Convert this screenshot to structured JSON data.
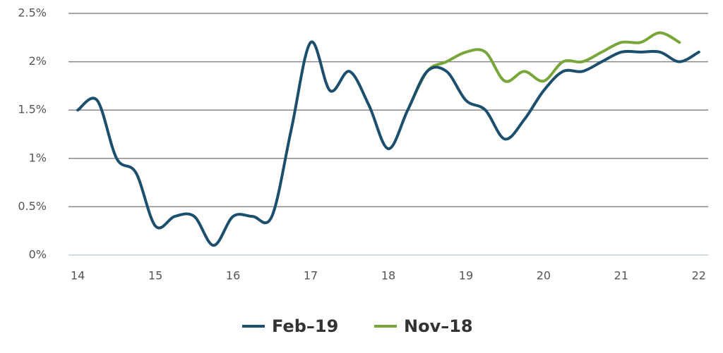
{
  "chart_data": {
    "type": "line",
    "x": [
      14,
      14.25,
      14.5,
      14.75,
      15,
      15.25,
      15.5,
      15.75,
      16,
      16.25,
      16.5,
      16.75,
      17,
      17.25,
      17.5,
      17.75,
      18,
      18.25,
      18.5,
      18.75,
      19,
      19.25,
      19.5,
      19.75,
      20,
      20.25,
      20.5,
      20.75,
      21,
      21.25,
      21.5,
      21.75,
      22
    ],
    "series": [
      {
        "name": "Feb–19",
        "color": "#1b4f6d",
        "values": [
          1.5,
          1.6,
          1.0,
          0.85,
          0.3,
          0.4,
          0.4,
          0.1,
          0.4,
          0.4,
          0.4,
          1.3,
          2.2,
          1.7,
          1.9,
          1.55,
          1.1,
          1.5,
          1.9,
          1.9,
          1.6,
          1.5,
          1.2,
          1.4,
          1.7,
          1.9,
          1.9,
          2.0,
          2.1,
          2.1,
          2.1,
          2.0,
          2.1
        ]
      },
      {
        "name": "Nov–18",
        "color": "#78a63a",
        "values": [
          null,
          null,
          null,
          null,
          null,
          null,
          null,
          null,
          null,
          null,
          null,
          null,
          null,
          null,
          null,
          null,
          null,
          1.5,
          1.9,
          2.0,
          2.1,
          2.1,
          1.8,
          1.9,
          1.8,
          2.0,
          2.0,
          2.1,
          2.2,
          2.2,
          2.3,
          2.2,
          null
        ]
      }
    ],
    "xlim": [
      13.88,
      22.12
    ],
    "xticks": [
      14,
      15,
      16,
      17,
      18,
      19,
      20,
      21,
      22
    ],
    "ylim": [
      0,
      2.5
    ],
    "yticks": [
      {
        "value": 0,
        "label": "0%"
      },
      {
        "value": 0.5,
        "label": "0.5%"
      },
      {
        "value": 1,
        "label": "1%"
      },
      {
        "value": 1.5,
        "label": "1.5%"
      },
      {
        "value": 2,
        "label": "2%"
      },
      {
        "value": 2.5,
        "label": "2.5%"
      }
    ],
    "grid": true,
    "legend": "bottom"
  }
}
